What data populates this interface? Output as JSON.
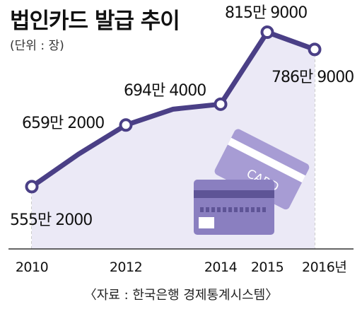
{
  "title": "법인카드 발급 추이",
  "unit": "(단위 : 장)",
  "source": "〈자료 : 한국은행 경제통계시스템〉",
  "card_text": "CARD",
  "colors": {
    "line": "#4a3f86",
    "area": "#ebe9f6",
    "card_dark": "#8a7fc0",
    "card_light": "#a79cd4",
    "stripe": "#5e5496"
  },
  "chart_data": {
    "type": "line",
    "x": [
      "2010",
      "2011",
      "2012",
      "2013",
      "2014",
      "2015",
      "2016"
    ],
    "values": [
      5552000,
      6100000,
      6592000,
      6860000,
      6944000,
      8159000,
      7869000
    ],
    "data_labels": [
      {
        "x": "2010",
        "text": "555만 2000"
      },
      {
        "x": "2012",
        "text": "659만 2000"
      },
      {
        "x": "2014",
        "text": "694만 4000"
      },
      {
        "x": "2015",
        "text": "815만 9000"
      },
      {
        "x": "2016",
        "text": "786만 9000"
      }
    ],
    "marked_points": [
      "2010",
      "2012",
      "2014",
      "2015",
      "2016"
    ],
    "tick_labels": [
      "2010",
      "2012",
      "2014",
      "2015",
      "2016년"
    ],
    "ylim": [
      4500000,
      8500000
    ]
  }
}
